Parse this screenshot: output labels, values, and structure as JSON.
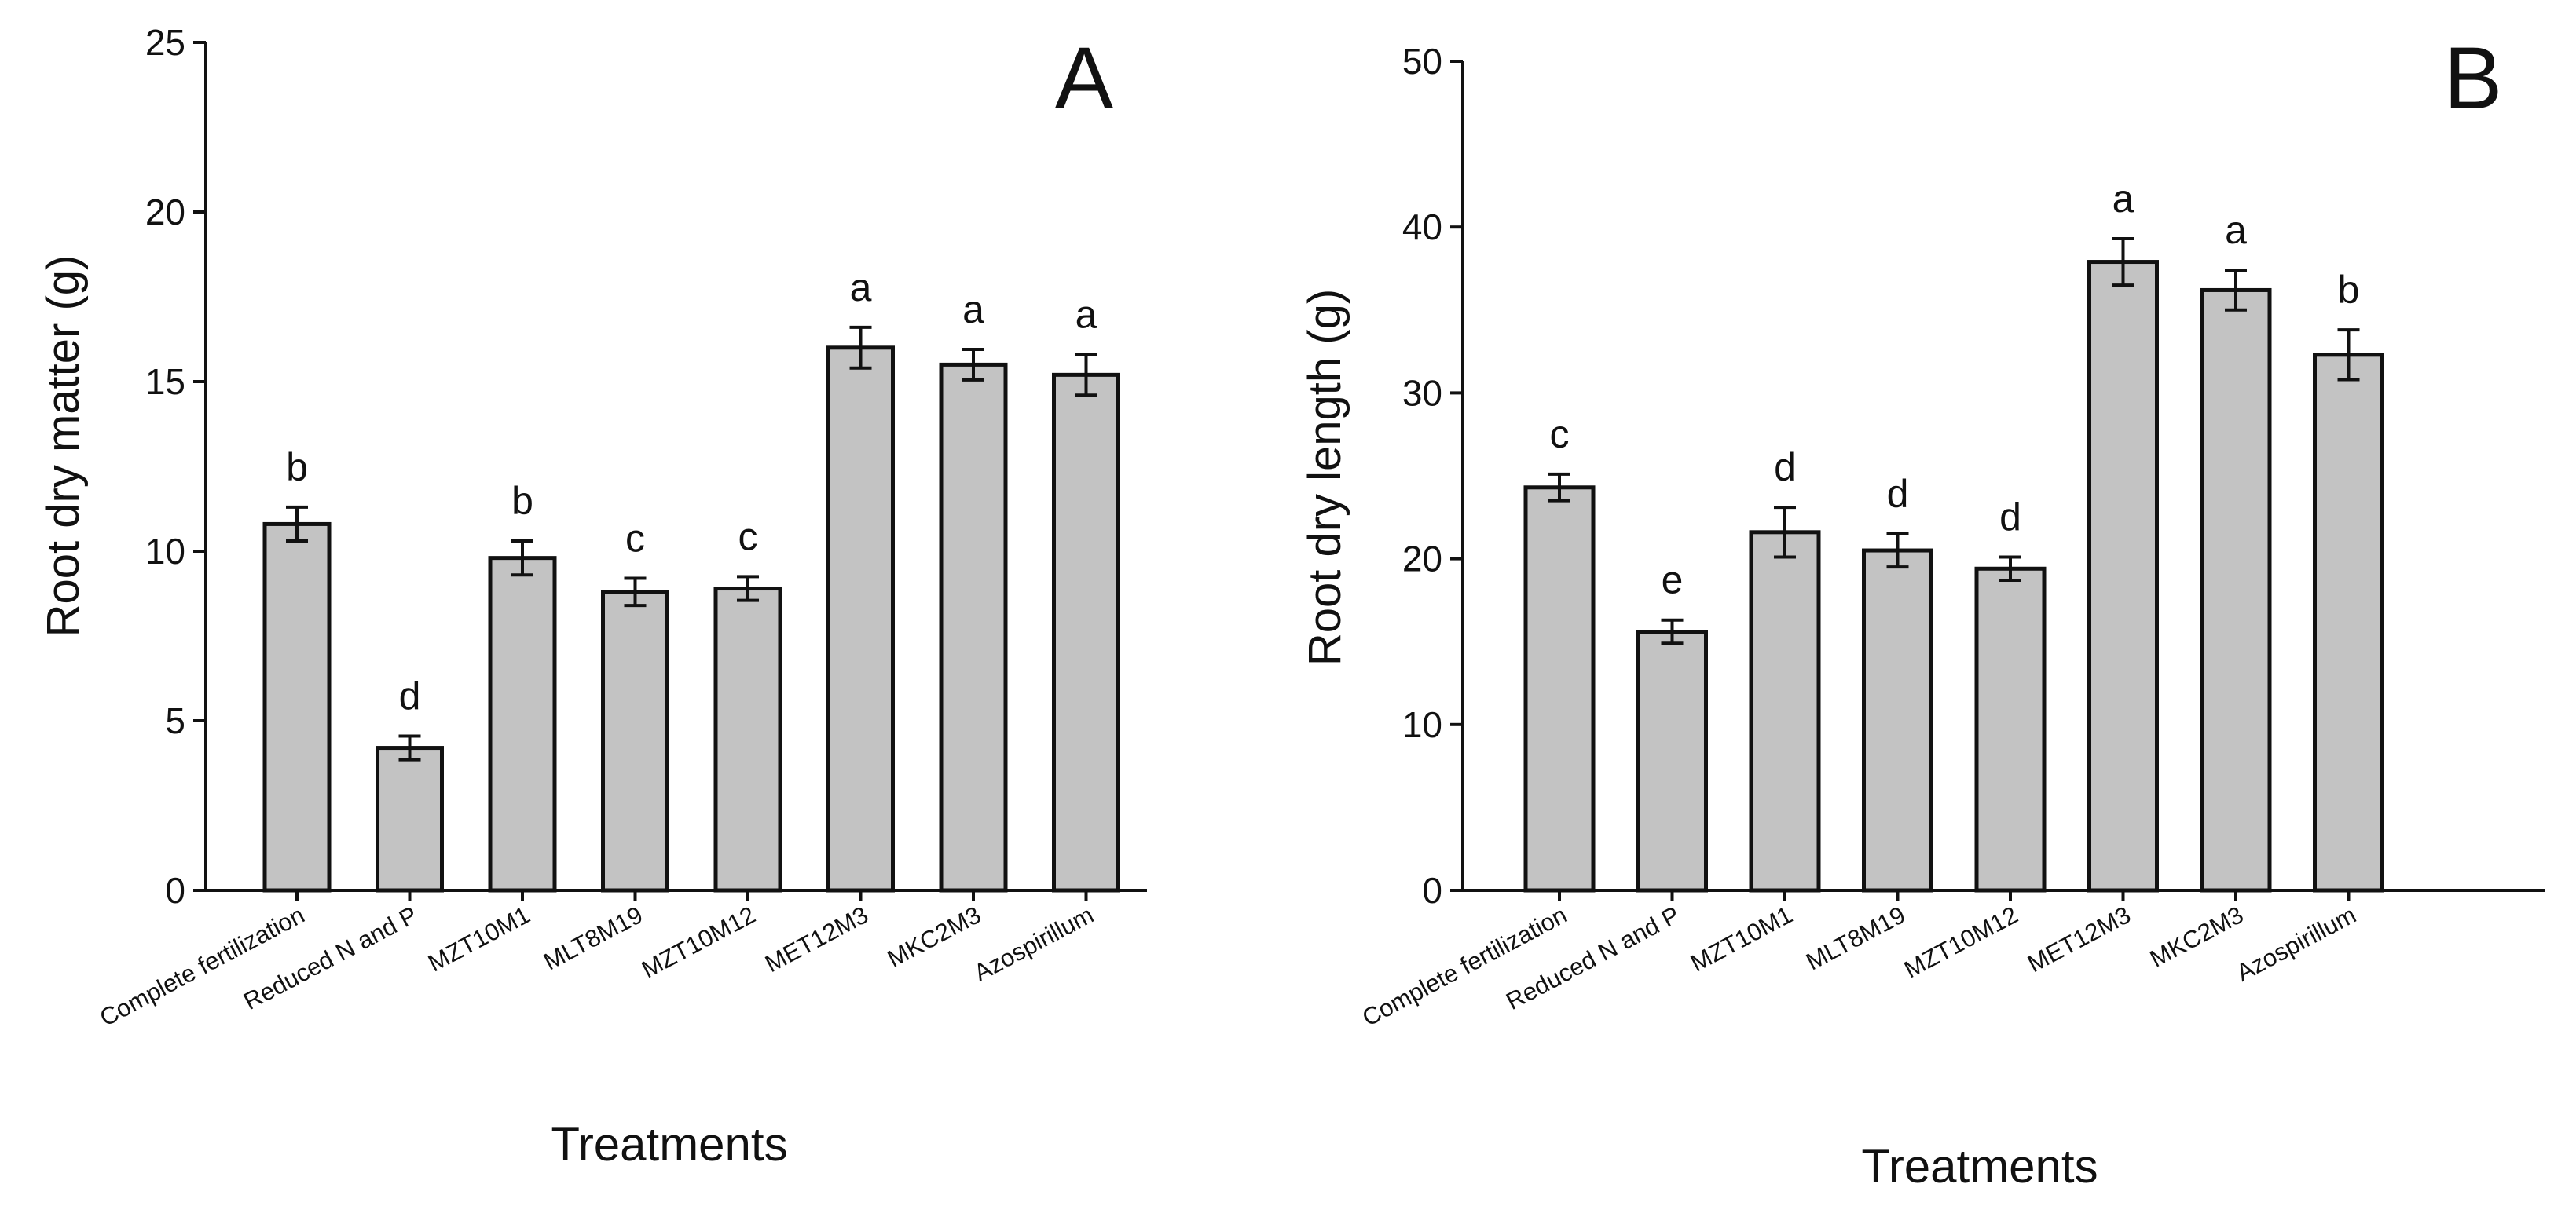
{
  "chart_data": [
    {
      "type": "bar",
      "panel_label": "A",
      "categories": [
        "Complete fertilization",
        "Reduced N and P",
        "MZT10M1",
        "MLT8M19",
        "MZT10M12",
        "MET12M3",
        "MKC2M3",
        "Azospirillum"
      ],
      "values": [
        10.8,
        4.2,
        9.8,
        8.8,
        8.9,
        16.0,
        15.5,
        15.2
      ],
      "errors": [
        0.5,
        0.35,
        0.5,
        0.4,
        0.35,
        0.6,
        0.45,
        0.6
      ],
      "significance": [
        "b",
        "d",
        "b",
        "c",
        "c",
        "a",
        "a",
        "a"
      ],
      "title": "",
      "xlabel": "Treatments",
      "ylabel": "Root dry matter  (g)",
      "ylim": [
        0,
        25
      ],
      "yticks": [
        "0",
        "5",
        "10",
        "15",
        "20",
        "25"
      ],
      "grid": false
    },
    {
      "type": "bar",
      "panel_label": "B",
      "categories": [
        "Complete fertilization",
        "Reduced N and P",
        "MZT10M1",
        "MLT8M19",
        "MZT10M12",
        "MET12M3",
        "MKC2M3",
        "Azospirillum"
      ],
      "values": [
        24.3,
        15.6,
        21.6,
        20.5,
        19.4,
        37.9,
        36.2,
        32.3
      ],
      "errors": [
        0.8,
        0.7,
        1.5,
        1.0,
        0.7,
        1.4,
        1.2,
        1.5
      ],
      "significance": [
        "c",
        "e",
        "d",
        "d",
        "d",
        "a",
        "a",
        "b"
      ],
      "title": "",
      "xlabel": "Treatments",
      "ylabel": "Root dry length  (g)",
      "ylim": [
        0,
        50
      ],
      "yticks": [
        "0",
        "10",
        "20",
        "30",
        "40",
        "50"
      ],
      "grid": false
    }
  ]
}
